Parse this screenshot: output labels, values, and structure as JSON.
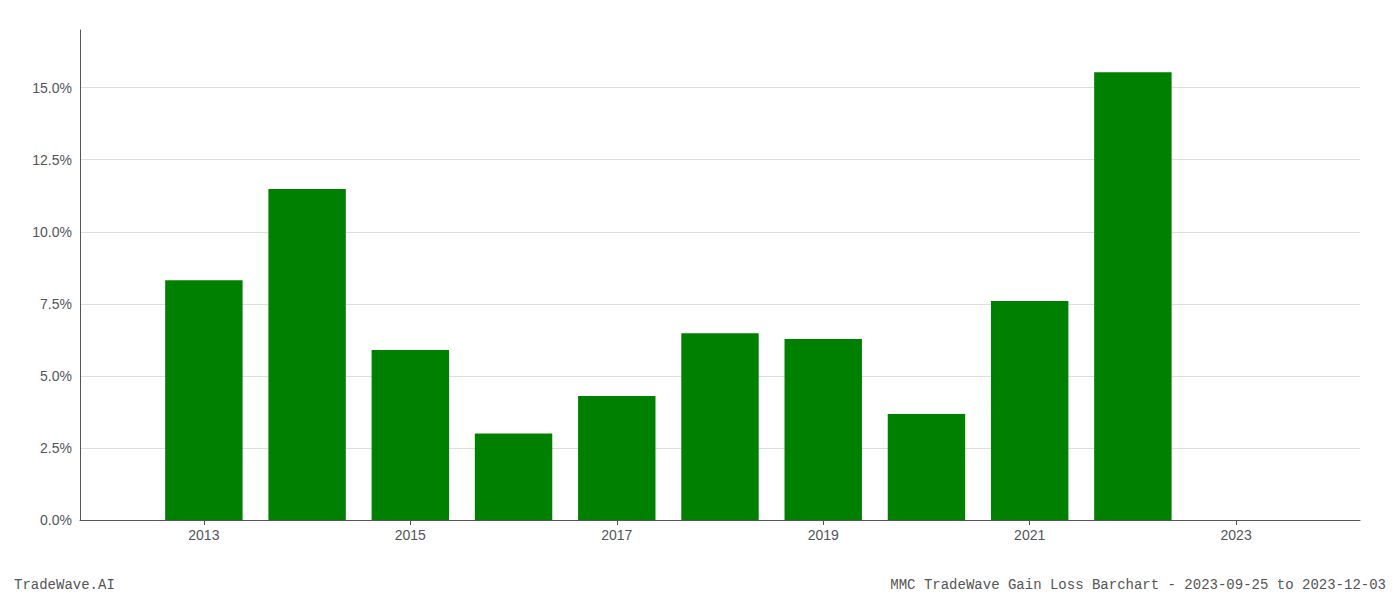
{
  "chart_data": {
    "type": "bar",
    "x": [
      2013,
      2014,
      2015,
      2016,
      2017,
      2018,
      2019,
      2020,
      2021,
      2022
    ],
    "values": [
      0.0832,
      0.1148,
      0.059,
      0.03,
      0.043,
      0.0648,
      0.0628,
      0.0368,
      0.076,
      0.1553
    ],
    "color": "#008000",
    "xlim": [
      2011.8,
      2024.2
    ],
    "xticks": [
      2013,
      2015,
      2017,
      2019,
      2021,
      2023
    ],
    "ylim": [
      0.0,
      0.17
    ],
    "yticks": [
      {
        "value": 0.0,
        "label": "0.0%"
      },
      {
        "value": 0.025,
        "label": "2.5%"
      },
      {
        "value": 0.05,
        "label": "5.0%"
      },
      {
        "value": 0.075,
        "label": "7.5%"
      },
      {
        "value": 0.1,
        "label": "10.0%"
      },
      {
        "value": 0.125,
        "label": "12.5%"
      },
      {
        "value": 0.15,
        "label": "15.0%"
      }
    ],
    "grid": true,
    "annotations": [
      "TradeWave.AI",
      "MMC TradeWave Gain Loss Barchart - 2023-09-25 to 2023-12-03"
    ]
  }
}
